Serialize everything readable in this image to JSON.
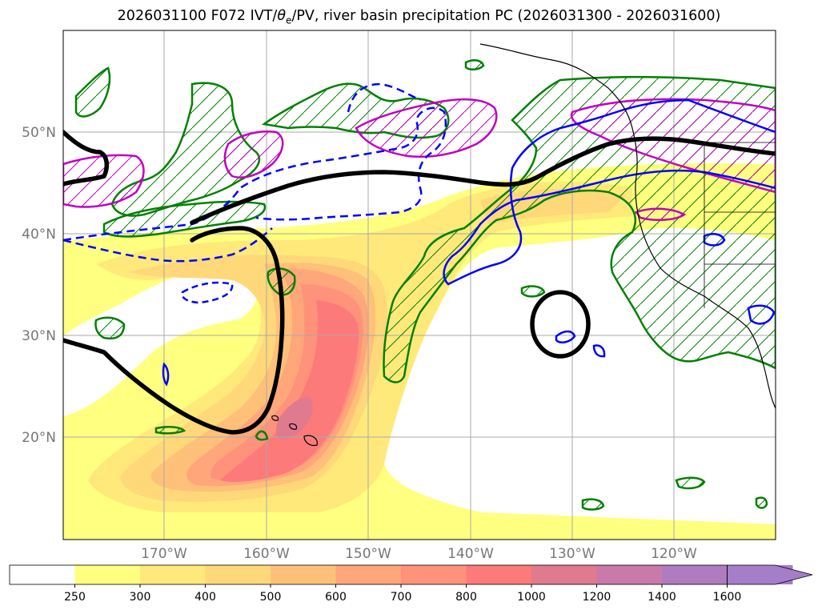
{
  "title": {
    "prefix": "2026031100 F072 IVT/",
    "theta": "θ",
    "theta_sub": "e",
    "suffix": "/PV, river basin precipitation PC (2026031300 - 2026031600)"
  },
  "lat_labels": [
    "50°N",
    "40°N",
    "30°N",
    "20°N"
  ],
  "lon_labels": [
    "170°W",
    "160°W",
    "150°W",
    "140°W",
    "130°W",
    "120°W"
  ],
  "colorbar": {
    "ticks": [
      "250",
      "300",
      "400",
      "500",
      "600",
      "700",
      "800",
      "1000",
      "1200",
      "1400",
      "1600"
    ],
    "colors": [
      "#ffffff",
      "#ffff80",
      "#ffe97a",
      "#ffd87a",
      "#ffc07a",
      "#ffa67a",
      "#ff927a",
      "#fd7a7a",
      "#e07a8e",
      "#c97aaa",
      "#b07cc0",
      "#a57dc8"
    ]
  },
  "colors": {
    "contour_theta": "#000000",
    "contour_pv": "#0000ff",
    "contour_precip": "#008000",
    "contour_magenta": "#c000c0",
    "tick_text": "#777777"
  }
}
